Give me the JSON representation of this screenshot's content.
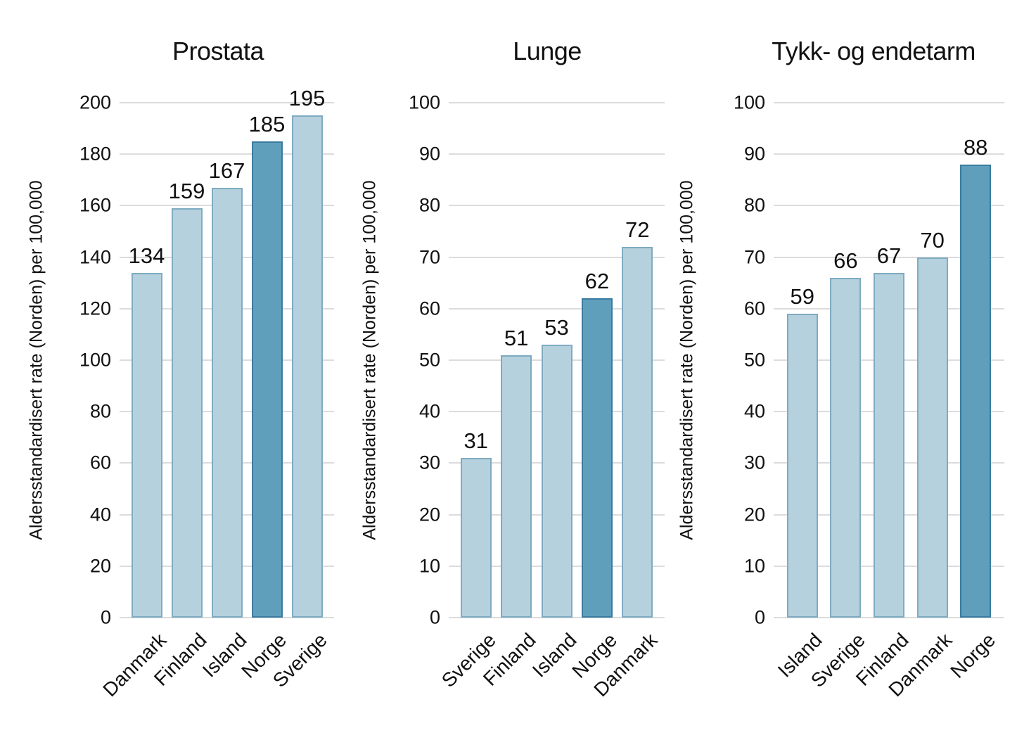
{
  "figure": {
    "background": "#ffffff",
    "y_axis_label": "Aldersstandardisert rate (Norden) per 100,000"
  },
  "colors": {
    "bar_fill": "#b5d1dd",
    "bar_border": "#7fabc1",
    "highlight_fill": "#5f9fbb",
    "highlight_border": "#3a7ba0",
    "gridline": "#dcdcdc",
    "text": "#111111"
  },
  "chart_data": [
    {
      "type": "bar",
      "title": "Prostata",
      "ylabel": "Aldersstandardisert rate (Norden) per 100,000",
      "xlabel": "",
      "categories": [
        "Danmark",
        "Finland",
        "Island",
        "Norge",
        "Sverige"
      ],
      "values": [
        134,
        159,
        167,
        185,
        195
      ],
      "highlight_category": "Norge",
      "ylim": [
        0,
        200
      ],
      "ytick_step": 20,
      "grid": true,
      "legend": false
    },
    {
      "type": "bar",
      "title": "Lunge",
      "ylabel": "Aldersstandardisert rate (Norden) per 100,000",
      "xlabel": "",
      "categories": [
        "Sverige",
        "Finland",
        "Island",
        "Norge",
        "Danmark"
      ],
      "values": [
        31,
        51,
        53,
        62,
        72
      ],
      "highlight_category": "Norge",
      "ylim": [
        0,
        100
      ],
      "ytick_step": 10,
      "grid": true,
      "legend": false
    },
    {
      "type": "bar",
      "title": "Tykk- og endetarm",
      "ylabel": "Aldersstandardisert rate (Norden) per 100,000",
      "xlabel": "",
      "categories": [
        "Island",
        "Sverige",
        "Finland",
        "Danmark",
        "Norge"
      ],
      "values": [
        59,
        66,
        67,
        70,
        88
      ],
      "highlight_category": "Norge",
      "ylim": [
        0,
        100
      ],
      "ytick_step": 10,
      "grid": true,
      "legend": false
    }
  ]
}
